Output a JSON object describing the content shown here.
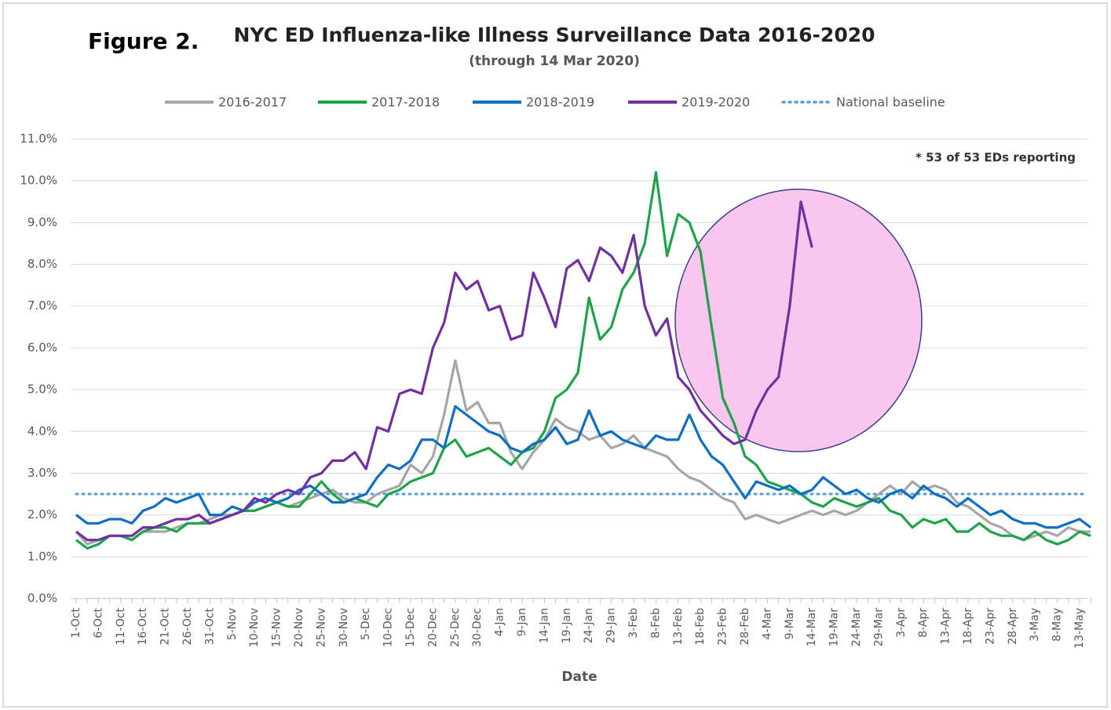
{
  "chart_data": {
    "type": "line",
    "figure_label": "Figure 2.",
    "title": "NYC ED Influenza-like Illness Surveillance Data 2016-2020",
    "subtitle": "(through 14 Mar 2020)",
    "annotation": "* 53 of 53 EDs reporting",
    "xlabel": "Date",
    "categories": [
      "1-Oct",
      null,
      "6-Oct",
      null,
      "11-Oct",
      null,
      "16-Oct",
      null,
      "21-Oct",
      null,
      "26-Oct",
      null,
      "31-Oct",
      null,
      "5-Nov",
      null,
      "10-Nov",
      null,
      "15-Nov",
      null,
      "20-Nov",
      null,
      "25-Nov",
      null,
      "30-Nov",
      null,
      "5-Dec",
      null,
      "10-Dec",
      null,
      "15-Dec",
      null,
      "20-Dec",
      null,
      "25-Dec",
      null,
      "30-Dec",
      null,
      "4-Jan",
      null,
      "9-Jan",
      null,
      "14-Jan",
      null,
      "19-Jan",
      null,
      "24-Jan",
      null,
      "29-Jan",
      null,
      "3-Feb",
      null,
      "8-Feb",
      null,
      "13-Feb",
      null,
      "18-Feb",
      null,
      "23-Feb",
      null,
      "28-Feb",
      null,
      "4-Mar",
      null,
      "9-Mar",
      null,
      "14-Mar",
      null,
      "19-Mar",
      null,
      "24-Mar",
      null,
      "29-Mar",
      null,
      "3-Apr",
      null,
      "8-Apr",
      null,
      "13-Apr",
      null,
      "18-Apr",
      null,
      "23-Apr",
      null,
      "28-Apr",
      null,
      "3-May",
      null,
      "8-May",
      null,
      "13-May",
      null
    ],
    "series": [
      {
        "name": "2016-2017",
        "color": "#a6a6a6",
        "values": [
          1.6,
          1.3,
          1.4,
          1.5,
          1.5,
          1.4,
          1.6,
          1.6,
          1.6,
          1.7,
          1.8,
          1.8,
          1.9,
          2.0,
          2.0,
          2.1,
          2.1,
          2.2,
          2.3,
          2.2,
          2.3,
          2.4,
          2.5,
          2.6,
          2.4,
          2.3,
          2.3,
          2.5,
          2.6,
          2.7,
          3.2,
          3.0,
          3.4,
          4.4,
          5.7,
          4.5,
          4.7,
          4.2,
          4.2,
          3.5,
          3.1,
          3.5,
          3.8,
          4.3,
          4.1,
          4.0,
          3.8,
          3.9,
          3.6,
          3.7,
          3.9,
          3.6,
          3.5,
          3.4,
          3.1,
          2.9,
          2.8,
          2.6,
          2.4,
          2.3,
          1.9,
          2.0,
          1.9,
          1.8,
          1.9,
          2.0,
          2.1,
          2.0,
          2.1,
          2.0,
          2.1,
          2.3,
          2.5,
          2.7,
          2.5,
          2.8,
          2.6,
          2.7,
          2.6,
          2.3,
          2.2,
          2.0,
          1.8,
          1.7,
          1.5,
          1.4,
          1.5,
          1.6,
          1.5,
          1.7,
          1.6,
          1.6
        ]
      },
      {
        "name": "2017-2018",
        "color": "#1fa34a",
        "values": [
          1.4,
          1.2,
          1.3,
          1.5,
          1.5,
          1.4,
          1.6,
          1.7,
          1.7,
          1.6,
          1.8,
          1.8,
          1.8,
          1.9,
          2.0,
          2.1,
          2.1,
          2.2,
          2.3,
          2.2,
          2.2,
          2.5,
          2.8,
          2.5,
          2.3,
          2.4,
          2.3,
          2.2,
          2.5,
          2.6,
          2.8,
          2.9,
          3.0,
          3.6,
          3.8,
          3.4,
          3.5,
          3.6,
          3.4,
          3.2,
          3.5,
          3.6,
          4.0,
          4.8,
          5.0,
          5.4,
          7.2,
          6.2,
          6.5,
          7.4,
          7.8,
          8.5,
          10.2,
          8.2,
          9.2,
          9.0,
          8.3,
          6.5,
          4.8,
          4.2,
          3.4,
          3.2,
          2.8,
          2.7,
          2.6,
          2.5,
          2.3,
          2.2,
          2.4,
          2.3,
          2.2,
          2.3,
          2.4,
          2.1,
          2.0,
          1.7,
          1.9,
          1.8,
          1.9,
          1.6,
          1.6,
          1.8,
          1.6,
          1.5,
          1.5,
          1.4,
          1.6,
          1.4,
          1.3,
          1.4,
          1.6,
          1.5
        ]
      },
      {
        "name": "2018-2019",
        "color": "#0e6fc1",
        "values": [
          2.0,
          1.8,
          1.8,
          1.9,
          1.9,
          1.8,
          2.1,
          2.2,
          2.4,
          2.3,
          2.4,
          2.5,
          2.0,
          2.0,
          2.2,
          2.1,
          2.3,
          2.4,
          2.3,
          2.4,
          2.6,
          2.7,
          2.5,
          2.3,
          2.3,
          2.4,
          2.5,
          2.9,
          3.2,
          3.1,
          3.3,
          3.8,
          3.8,
          3.6,
          4.6,
          4.4,
          4.2,
          4.0,
          3.9,
          3.6,
          3.5,
          3.7,
          3.8,
          4.1,
          3.7,
          3.8,
          4.5,
          3.9,
          4.0,
          3.8,
          3.7,
          3.6,
          3.9,
          3.8,
          3.8,
          4.4,
          3.8,
          3.4,
          3.2,
          2.8,
          2.4,
          2.8,
          2.7,
          2.6,
          2.7,
          2.5,
          2.6,
          2.9,
          2.7,
          2.5,
          2.6,
          2.4,
          2.3,
          2.5,
          2.6,
          2.4,
          2.7,
          2.5,
          2.4,
          2.2,
          2.4,
          2.2,
          2.0,
          2.1,
          1.9,
          1.8,
          1.8,
          1.7,
          1.7,
          1.8,
          1.9,
          1.7
        ]
      },
      {
        "name": "2019-2020",
        "color": "#7030a0",
        "values": [
          1.6,
          1.4,
          1.4,
          1.5,
          1.5,
          1.5,
          1.7,
          1.7,
          1.8,
          1.9,
          1.9,
          2.0,
          1.8,
          1.9,
          2.0,
          2.1,
          2.4,
          2.3,
          2.5,
          2.6,
          2.5,
          2.9,
          3.0,
          3.3,
          3.3,
          3.5,
          3.1,
          4.1,
          4.0,
          4.9,
          5.0,
          4.9,
          6.0,
          6.6,
          7.8,
          7.4,
          7.6,
          6.9,
          7.0,
          6.2,
          6.3,
          7.8,
          7.2,
          6.5,
          7.9,
          8.1,
          7.6,
          8.4,
          8.2,
          7.8,
          8.7,
          7.0,
          6.3,
          6.7,
          5.3,
          5.0,
          4.5,
          4.2,
          3.9,
          3.7,
          3.8,
          4.5,
          5.0,
          5.3,
          7.0,
          9.5,
          8.4,
          null,
          null,
          null,
          null,
          null,
          null,
          null,
          null,
          null,
          null,
          null,
          null,
          null,
          null,
          null,
          null,
          null,
          null,
          null,
          null,
          null,
          null,
          null,
          null,
          null
        ]
      }
    ],
    "baseline": {
      "name": "National baseline",
      "value": 2.5,
      "color": "#5b9bd5"
    },
    "ylim": [
      0,
      11
    ],
    "yticks": [
      {
        "value": 0,
        "label": "0.0%"
      },
      {
        "value": 1,
        "label": "1.0%"
      },
      {
        "value": 2,
        "label": "2.0%"
      },
      {
        "value": 3,
        "label": "3.0%"
      },
      {
        "value": 4,
        "label": "4.0%"
      },
      {
        "value": 5,
        "label": "5.0%"
      },
      {
        "value": 6,
        "label": "6.0%"
      },
      {
        "value": 7,
        "label": "7.0%"
      },
      {
        "value": 8,
        "label": "8.0%"
      },
      {
        "value": 9,
        "label": "9.0%"
      },
      {
        "value": 10,
        "label": "10.0%"
      },
      {
        "value": 11,
        "label": "11.0%"
      }
    ],
    "grid": true,
    "legend": "top"
  }
}
